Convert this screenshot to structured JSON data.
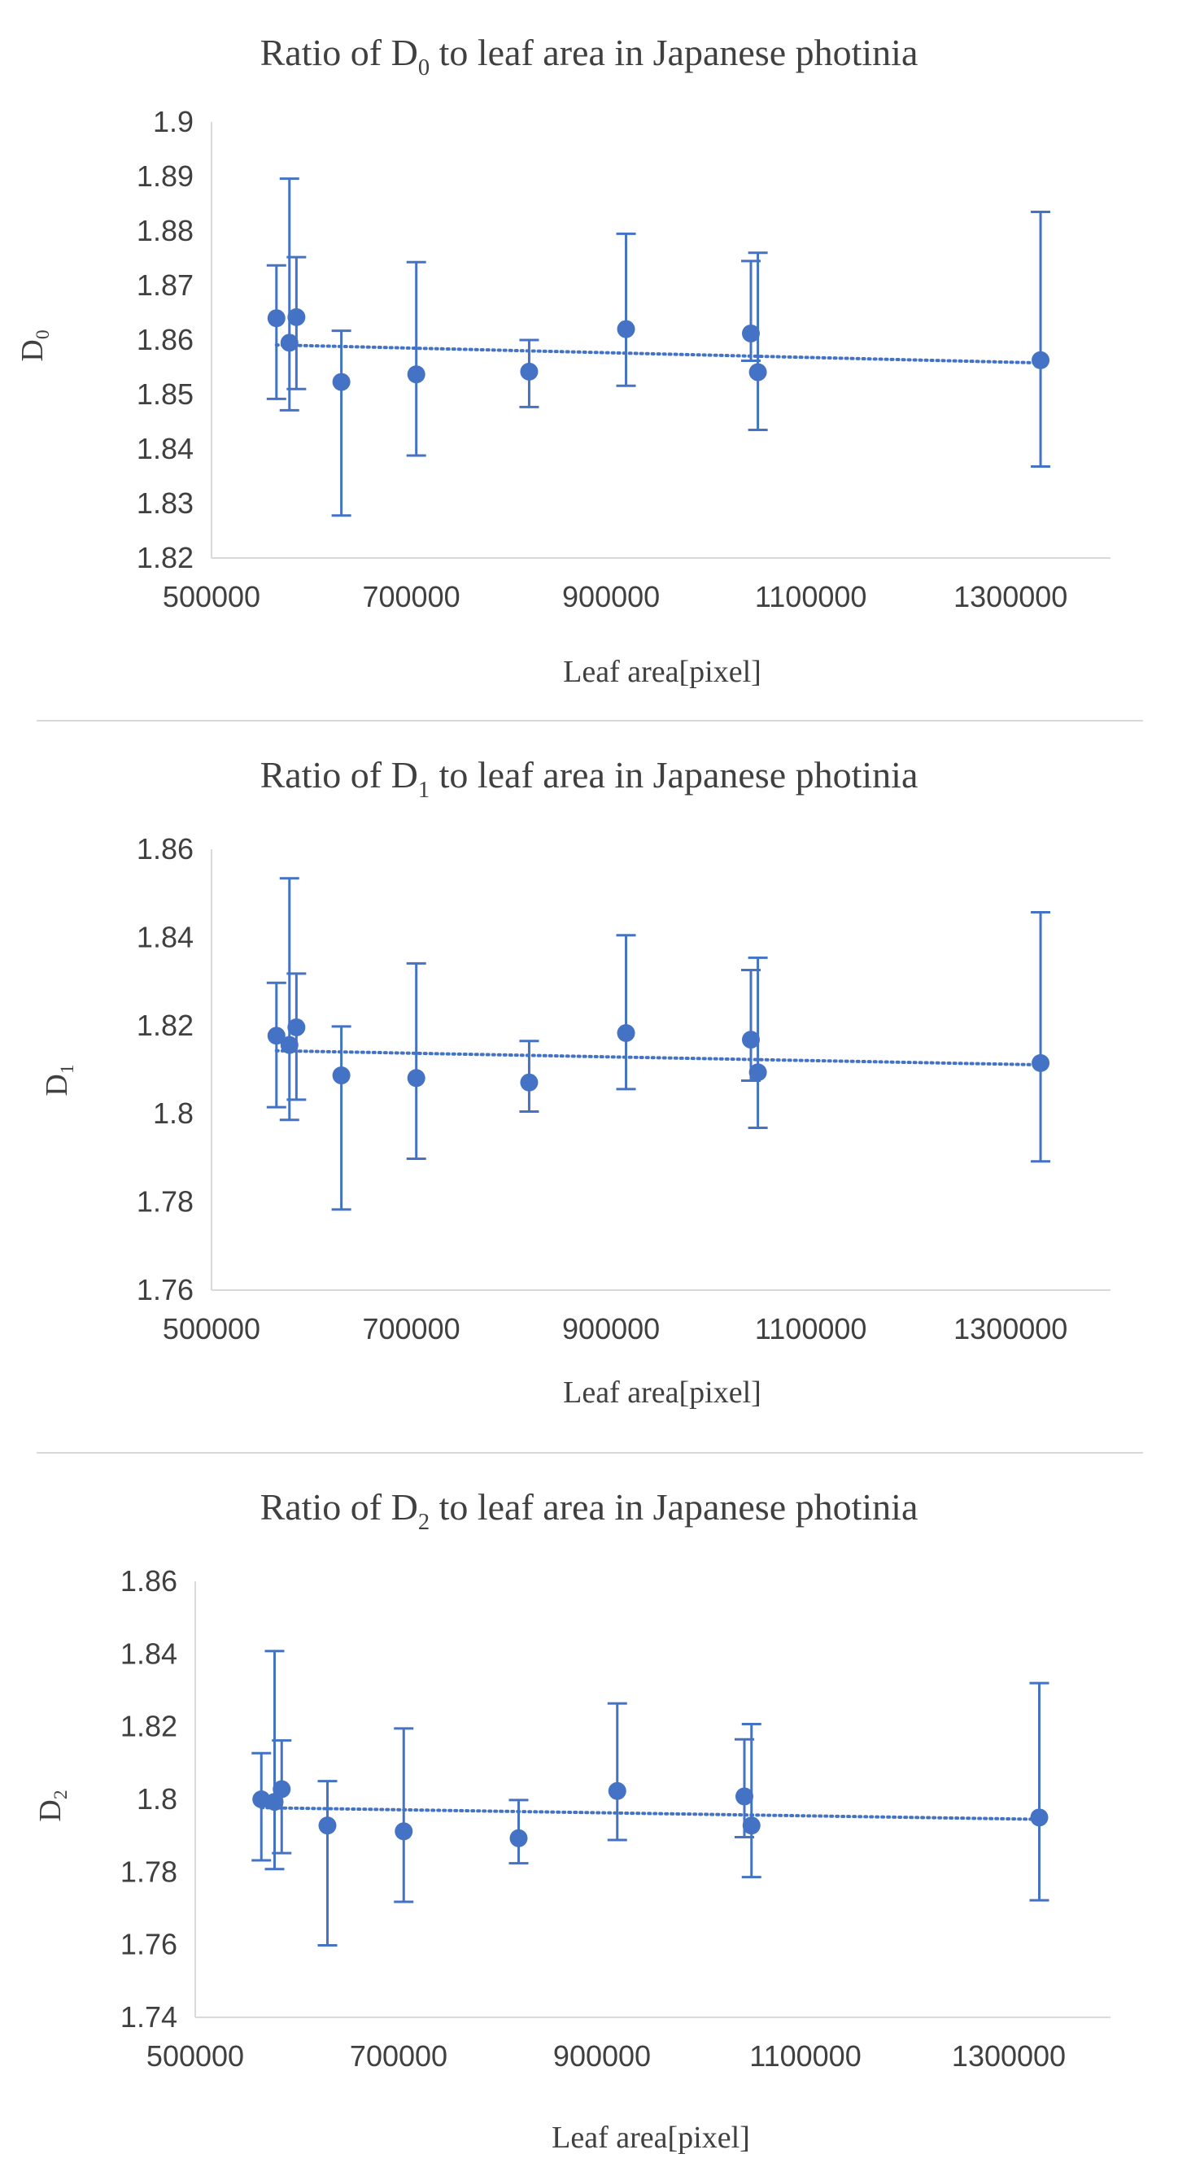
{
  "chart_data": [
    {
      "type": "scatter",
      "title": "Ratio of D₀ to leaf area in Japanese photinia",
      "title_prefix": "Ratio of D",
      "title_subscript": "0",
      "title_suffix": " to leaf area in Japanese photinia",
      "ylabel": "D",
      "ylabel_subscript": "0",
      "xlabel": "Leaf area[pixel]",
      "xlim": [
        500000,
        1400000
      ],
      "ylim": [
        1.82,
        1.9
      ],
      "xticks": [
        500000,
        700000,
        900000,
        1100000,
        1300000
      ],
      "xtick_labels": [
        "500000",
        "700000",
        "900000",
        "1100000",
        "1300000"
      ],
      "yticks": [
        1.82,
        1.83,
        1.84,
        1.85,
        1.86,
        1.87,
        1.88,
        1.89,
        1.9
      ],
      "ytick_labels": [
        "1.82",
        "1.83",
        "1.84",
        "1.85",
        "1.86",
        "1.87",
        "1.88",
        "1.89",
        "1.9"
      ],
      "x": [
        565000,
        578000,
        585000,
        630000,
        705000,
        818000,
        915000,
        1040000,
        1047000,
        1330000
      ],
      "y": [
        1.864,
        1.8595,
        1.8642,
        1.8523,
        1.8537,
        1.8542,
        1.862,
        1.8612,
        1.8541,
        1.8563
      ],
      "err_low": [
        1.8492,
        1.8471,
        1.851,
        1.8278,
        1.8388,
        1.8477,
        1.8516,
        1.8562,
        1.8435,
        1.8368
      ],
      "err_high": [
        1.8737,
        1.8896,
        1.8752,
        1.8617,
        1.8743,
        1.86,
        1.8795,
        1.8745,
        1.876,
        1.8835
      ],
      "trendline": {
        "style": "dotted",
        "x": [
          565000,
          1330000
        ],
        "y": [
          1.8591,
          1.8558
        ]
      },
      "grid": false,
      "color": "#4472C4"
    },
    {
      "type": "scatter",
      "title": "Ratio of D₁ to leaf area in Japanese photinia",
      "title_prefix": "Ratio of D",
      "title_subscript": "1",
      "title_suffix": " to leaf area in Japanese photinia",
      "ylabel": "D",
      "ylabel_subscript": "1",
      "xlabel": "Leaf area[pixel]",
      "xlim": [
        500000,
        1400000
      ],
      "ylim": [
        1.76,
        1.86
      ],
      "xticks": [
        500000,
        700000,
        900000,
        1100000,
        1300000
      ],
      "xtick_labels": [
        "500000",
        "700000",
        "900000",
        "1100000",
        "1300000"
      ],
      "yticks": [
        1.76,
        1.78,
        1.8,
        1.82,
        1.84,
        1.86
      ],
      "ytick_labels": [
        "1.76",
        "1.78",
        "1.8",
        "1.82",
        "1.84",
        "1.86"
      ],
      "x": [
        565000,
        578000,
        585000,
        630000,
        705000,
        818000,
        915000,
        1040000,
        1047000,
        1330000
      ],
      "y": [
        1.8177,
        1.8156,
        1.8196,
        1.8087,
        1.8081,
        1.8071,
        1.8183,
        1.8168,
        1.8094,
        1.8115
      ],
      "err_low": [
        1.8015,
        1.7986,
        1.8032,
        1.7783,
        1.7898,
        1.8005,
        1.8056,
        1.8075,
        1.7968,
        1.7892
      ],
      "err_high": [
        1.8297,
        1.8534,
        1.8318,
        1.8198,
        1.8341,
        1.8165,
        1.8405,
        1.8326,
        1.8354,
        1.8457
      ],
      "trendline": {
        "style": "dotted",
        "x": [
          565000,
          1330000
        ],
        "y": [
          1.8143,
          1.8111
        ]
      },
      "grid": false,
      "color": "#4472C4"
    },
    {
      "type": "scatter",
      "title": "Ratio of D₂ to leaf area in Japanese photinia",
      "title_prefix": "Ratio of D",
      "title_subscript": "2",
      "title_suffix": " to leaf area in Japanese photinia",
      "ylabel": "D",
      "ylabel_subscript": "2",
      "xlabel": "Leaf area[pixel]",
      "xlim": [
        500000,
        1400000
      ],
      "ylim": [
        1.74,
        1.86
      ],
      "xticks": [
        500000,
        700000,
        900000,
        1100000,
        1300000
      ],
      "xtick_labels": [
        "500000",
        "700000",
        "900000",
        "1100000",
        "1300000"
      ],
      "yticks": [
        1.74,
        1.76,
        1.78,
        1.8,
        1.82,
        1.84,
        1.86
      ],
      "ytick_labels": [
        "1.74",
        "1.76",
        "1.78",
        "1.8",
        "1.82",
        "1.84",
        "1.86"
      ],
      "x": [
        565000,
        578000,
        585000,
        630000,
        705000,
        818000,
        915000,
        1040000,
        1047000,
        1330000
      ],
      "y": [
        1.8,
        1.7993,
        1.8028,
        1.7928,
        1.7912,
        1.7893,
        1.8023,
        1.8008,
        1.7928,
        1.795
      ],
      "err_low": [
        1.7832,
        1.7808,
        1.7852,
        1.7598,
        1.7718,
        1.7824,
        1.7888,
        1.7896,
        1.7786,
        1.7722
      ],
      "err_high": [
        1.8127,
        1.8408,
        1.8162,
        1.805,
        1.8195,
        1.7998,
        1.8264,
        1.8165,
        1.8207,
        1.832
      ],
      "trendline": {
        "style": "dotted",
        "x": [
          565000,
          1330000
        ],
        "y": [
          1.7977,
          1.7945
        ]
      },
      "grid": false,
      "color": "#4472C4"
    }
  ]
}
